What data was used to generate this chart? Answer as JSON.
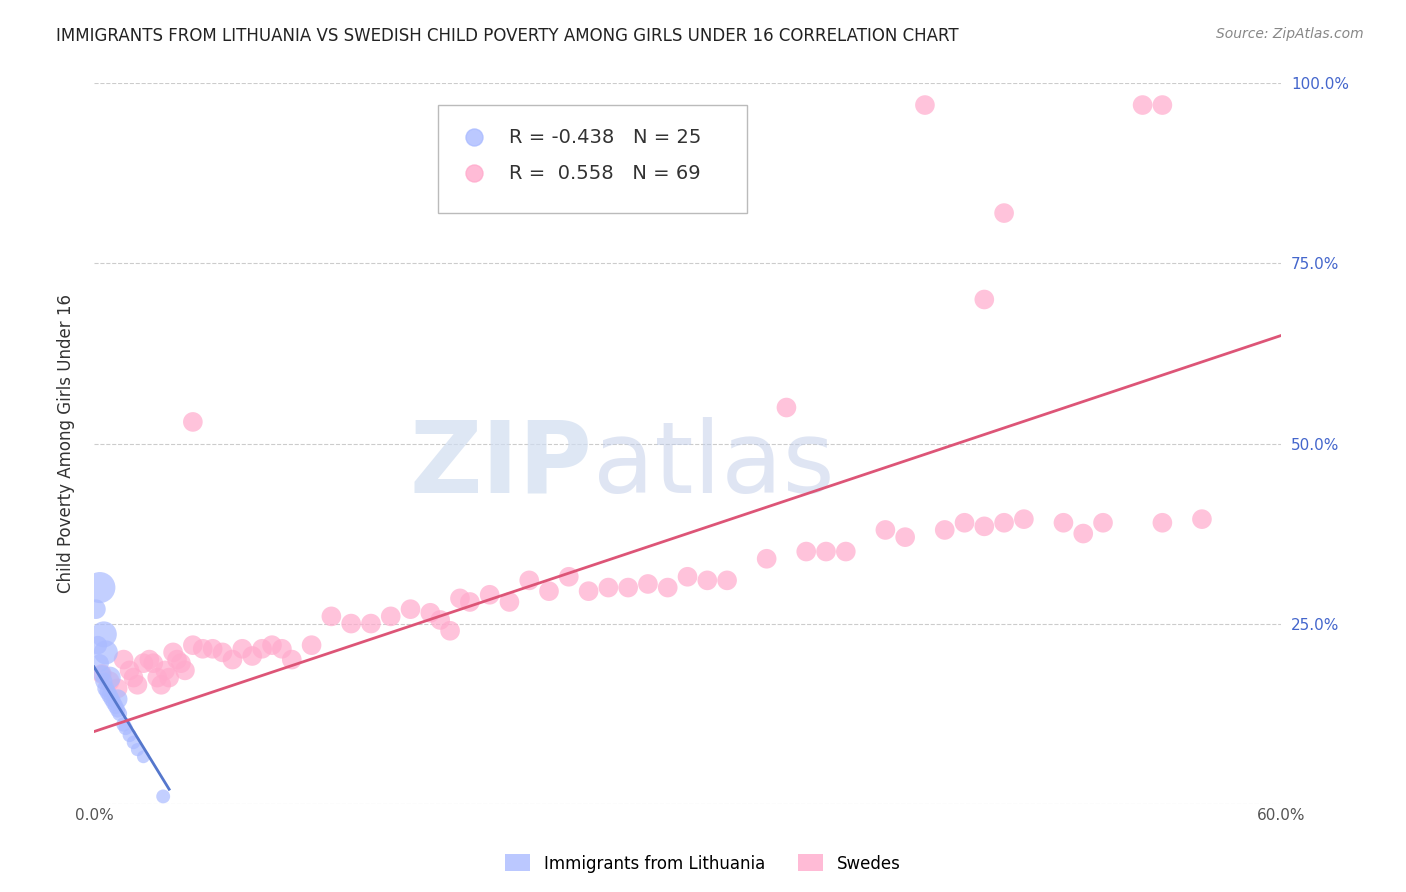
{
  "title": "IMMIGRANTS FROM LITHUANIA VS SWEDISH CHILD POVERTY AMONG GIRLS UNDER 16 CORRELATION CHART",
  "source": "Source: ZipAtlas.com",
  "ylabel": "Child Poverty Among Girls Under 16",
  "xlim": [
    0.0,
    0.6
  ],
  "ylim": [
    0.0,
    1.0
  ],
  "xticks": [
    0.0,
    0.6
  ],
  "xticklabels": [
    "0.0%",
    "60.0%"
  ],
  "yticks_right": [
    0.0,
    0.25,
    0.5,
    0.75,
    1.0
  ],
  "yticklabels_right": [
    "",
    "25.0%",
    "50.0%",
    "75.0%",
    "100.0%"
  ],
  "grid_color": "#cccccc",
  "background": "#ffffff",
  "watermark_zip": "ZIP",
  "watermark_atlas": "atlas",
  "series1_label": "Immigrants from Lithuania",
  "series1_color": "#aabbff",
  "series1_R": "-0.438",
  "series1_N": "25",
  "series2_label": "Swedes",
  "series2_color": "#ffaacc",
  "series2_R": "0.558",
  "series2_N": "69",
  "trendline1_color": "#5577cc",
  "trendline2_color": "#dd5577",
  "title_fontsize": 12,
  "axis_label_fontsize": 12,
  "tick_fontsize": 11,
  "legend_fontsize": 14,
  "series1_x": [
    0.001,
    0.002,
    0.003,
    0.004,
    0.005,
    0.006,
    0.007,
    0.008,
    0.009,
    0.01,
    0.011,
    0.012,
    0.013,
    0.015,
    0.016,
    0.018,
    0.02,
    0.022,
    0.025,
    0.003,
    0.005,
    0.006,
    0.008,
    0.012,
    0.035
  ],
  "series1_y": [
    0.27,
    0.22,
    0.195,
    0.18,
    0.17,
    0.16,
    0.155,
    0.15,
    0.145,
    0.14,
    0.135,
    0.13,
    0.125,
    0.11,
    0.105,
    0.095,
    0.085,
    0.075,
    0.065,
    0.3,
    0.235,
    0.21,
    0.175,
    0.145,
    0.01
  ],
  "series1_sizes": [
    200,
    180,
    170,
    160,
    155,
    150,
    145,
    140,
    135,
    130,
    125,
    120,
    115,
    110,
    105,
    100,
    95,
    90,
    85,
    500,
    350,
    300,
    250,
    200,
    100
  ],
  "series2_x": [
    0.004,
    0.008,
    0.012,
    0.015,
    0.018,
    0.02,
    0.022,
    0.025,
    0.028,
    0.03,
    0.032,
    0.034,
    0.036,
    0.038,
    0.04,
    0.042,
    0.044,
    0.046,
    0.05,
    0.055,
    0.06,
    0.065,
    0.07,
    0.075,
    0.08,
    0.085,
    0.09,
    0.095,
    0.1,
    0.11,
    0.12,
    0.13,
    0.14,
    0.15,
    0.16,
    0.17,
    0.175,
    0.18,
    0.185,
    0.19,
    0.2,
    0.21,
    0.22,
    0.23,
    0.24,
    0.25,
    0.26,
    0.27,
    0.28,
    0.29,
    0.3,
    0.31,
    0.32,
    0.34,
    0.36,
    0.37,
    0.38,
    0.4,
    0.41,
    0.43,
    0.44,
    0.45,
    0.46,
    0.47,
    0.49,
    0.5,
    0.51,
    0.54,
    0.56
  ],
  "series2_y": [
    0.18,
    0.17,
    0.16,
    0.2,
    0.185,
    0.175,
    0.165,
    0.195,
    0.2,
    0.195,
    0.175,
    0.165,
    0.185,
    0.175,
    0.21,
    0.2,
    0.195,
    0.185,
    0.22,
    0.215,
    0.215,
    0.21,
    0.2,
    0.215,
    0.205,
    0.215,
    0.22,
    0.215,
    0.2,
    0.22,
    0.26,
    0.25,
    0.25,
    0.26,
    0.27,
    0.265,
    0.255,
    0.24,
    0.285,
    0.28,
    0.29,
    0.28,
    0.31,
    0.295,
    0.315,
    0.295,
    0.3,
    0.3,
    0.305,
    0.3,
    0.315,
    0.31,
    0.31,
    0.34,
    0.35,
    0.35,
    0.35,
    0.38,
    0.37,
    0.38,
    0.39,
    0.385,
    0.39,
    0.395,
    0.39,
    0.375,
    0.39,
    0.39,
    0.395
  ],
  "series2_outlier_x": [
    0.35,
    0.45,
    0.53,
    0.54,
    0.42,
    0.05,
    0.46
  ],
  "series2_outlier_y": [
    0.55,
    0.7,
    0.97,
    0.97,
    0.97,
    0.53,
    0.82
  ],
  "series2_sizes": [
    200,
    200,
    200,
    200,
    200,
    200,
    200,
    200,
    200,
    200,
    200,
    200,
    200,
    200,
    200,
    200,
    200,
    200,
    200,
    200,
    200,
    200,
    200,
    200,
    200,
    200,
    200,
    200,
    200,
    200,
    200,
    200,
    200,
    200,
    200,
    200,
    200,
    200,
    200,
    200,
    200,
    200,
    200,
    200,
    200,
    200,
    200,
    200,
    200,
    200,
    200,
    200,
    200,
    200,
    200,
    200,
    200,
    200,
    200,
    200,
    200,
    200,
    200,
    200,
    200,
    200,
    200,
    200,
    200
  ],
  "trendline1_x": [
    0.0,
    0.038
  ],
  "trendline1_y": [
    0.19,
    0.02
  ],
  "trendline2_x": [
    0.0,
    0.6
  ],
  "trendline2_y": [
    0.1,
    0.65
  ]
}
